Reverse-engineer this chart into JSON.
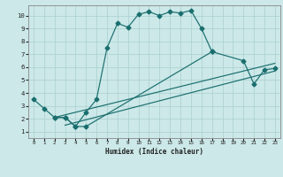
{
  "xlabel": "Humidex (Indice chaleur)",
  "bg_color": "#cce8e8",
  "grid_color": "#aacfcf",
  "line_color": "#1a6e6e",
  "xlim": [
    -0.5,
    23.5
  ],
  "ylim": [
    0.5,
    10.8
  ],
  "xticks": [
    0,
    1,
    2,
    3,
    4,
    5,
    6,
    7,
    8,
    9,
    10,
    11,
    12,
    13,
    14,
    15,
    16,
    17,
    18,
    19,
    20,
    21,
    22,
    23
  ],
  "yticks": [
    1,
    2,
    3,
    4,
    5,
    6,
    7,
    8,
    9,
    10
  ],
  "curve1_x": [
    0,
    1,
    2,
    3,
    4,
    5,
    6,
    7,
    8,
    9,
    10,
    11,
    12,
    13,
    14,
    15,
    16,
    17
  ],
  "curve1_y": [
    3.5,
    2.8,
    2.1,
    2.1,
    1.4,
    2.5,
    3.5,
    7.5,
    9.4,
    9.1,
    10.1,
    10.3,
    10.0,
    10.3,
    10.2,
    10.4,
    9.0,
    7.2
  ],
  "curve2_x": [
    2,
    3,
    4,
    5,
    17,
    20,
    21,
    22,
    23
  ],
  "curve2_y": [
    2.1,
    2.1,
    1.4,
    1.4,
    7.2,
    6.5,
    4.7,
    5.8,
    5.9
  ],
  "line1_x": [
    2,
    23
  ],
  "line1_y": [
    2.1,
    6.3
  ],
  "line2_x": [
    3,
    23
  ],
  "line2_y": [
    1.5,
    5.7
  ]
}
